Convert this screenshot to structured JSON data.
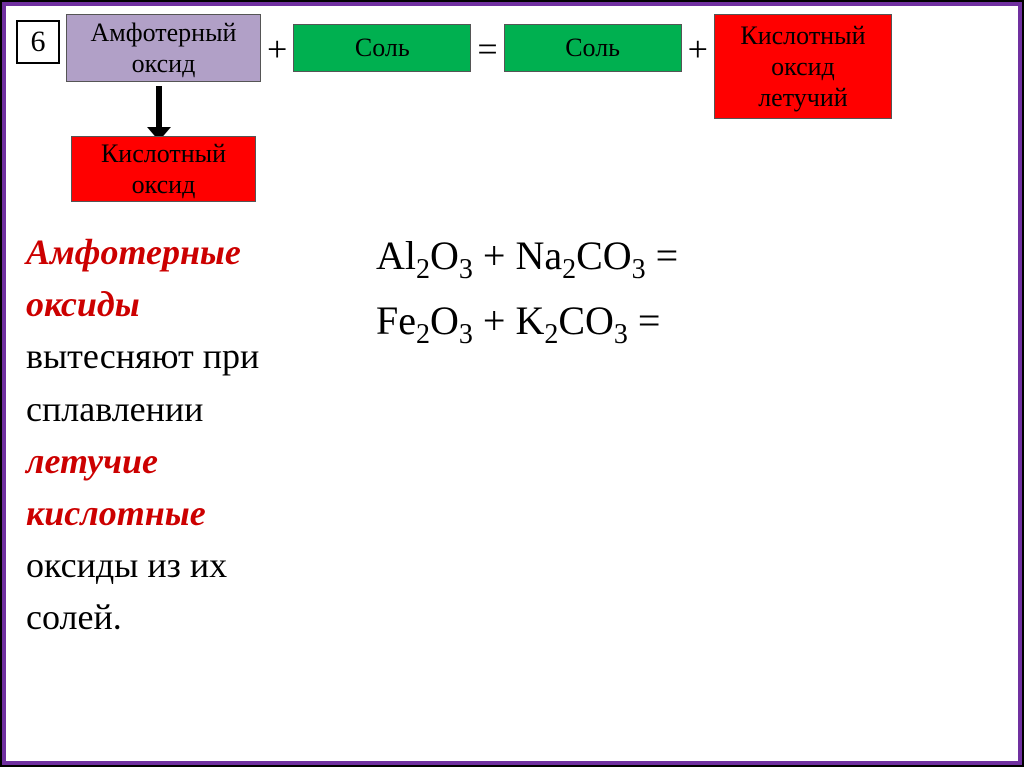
{
  "number": "6",
  "blocks": {
    "amphoter": "Амфотерный\nоксид",
    "salt1": "Соль",
    "salt2": "Соль",
    "acid_volatile": "Кислотный\nоксид\nлетучий",
    "acid_small": "Кислотный\nоксид"
  },
  "operators": {
    "plus1": "+",
    "equals": "=",
    "plus2": "+"
  },
  "text": {
    "l1a": "Амфотерные",
    "l1b": "оксиды",
    "l2": "вытесняют при",
    "l3": "сплавлении",
    "l4a": "летучие",
    "l4b": "кислотные",
    "l5": "оксиды из их",
    "l6": "солей."
  },
  "formulas": {
    "f1_a": "Al",
    "f1_b": "2",
    "f1_c": "O",
    "f1_d": "3",
    "f1_e": " + Na",
    "f1_f": "2",
    "f1_g": "CO",
    "f1_h": "3",
    "f1_i": " =",
    "f2_a": "Fe",
    "f2_b": "2",
    "f2_c": "O",
    "f2_d": "3",
    "f2_e": " + K",
    "f2_f": "2",
    "f2_g": "CO",
    "f2_h": "3",
    "f2_i": " ="
  },
  "colors": {
    "frame_border": "#7030a0",
    "amphoter_bg": "#b1a0c7",
    "salt_bg": "#00b050",
    "acid_bg": "#ff0000",
    "text_red": "#cc0000",
    "background": "#ffffff"
  }
}
